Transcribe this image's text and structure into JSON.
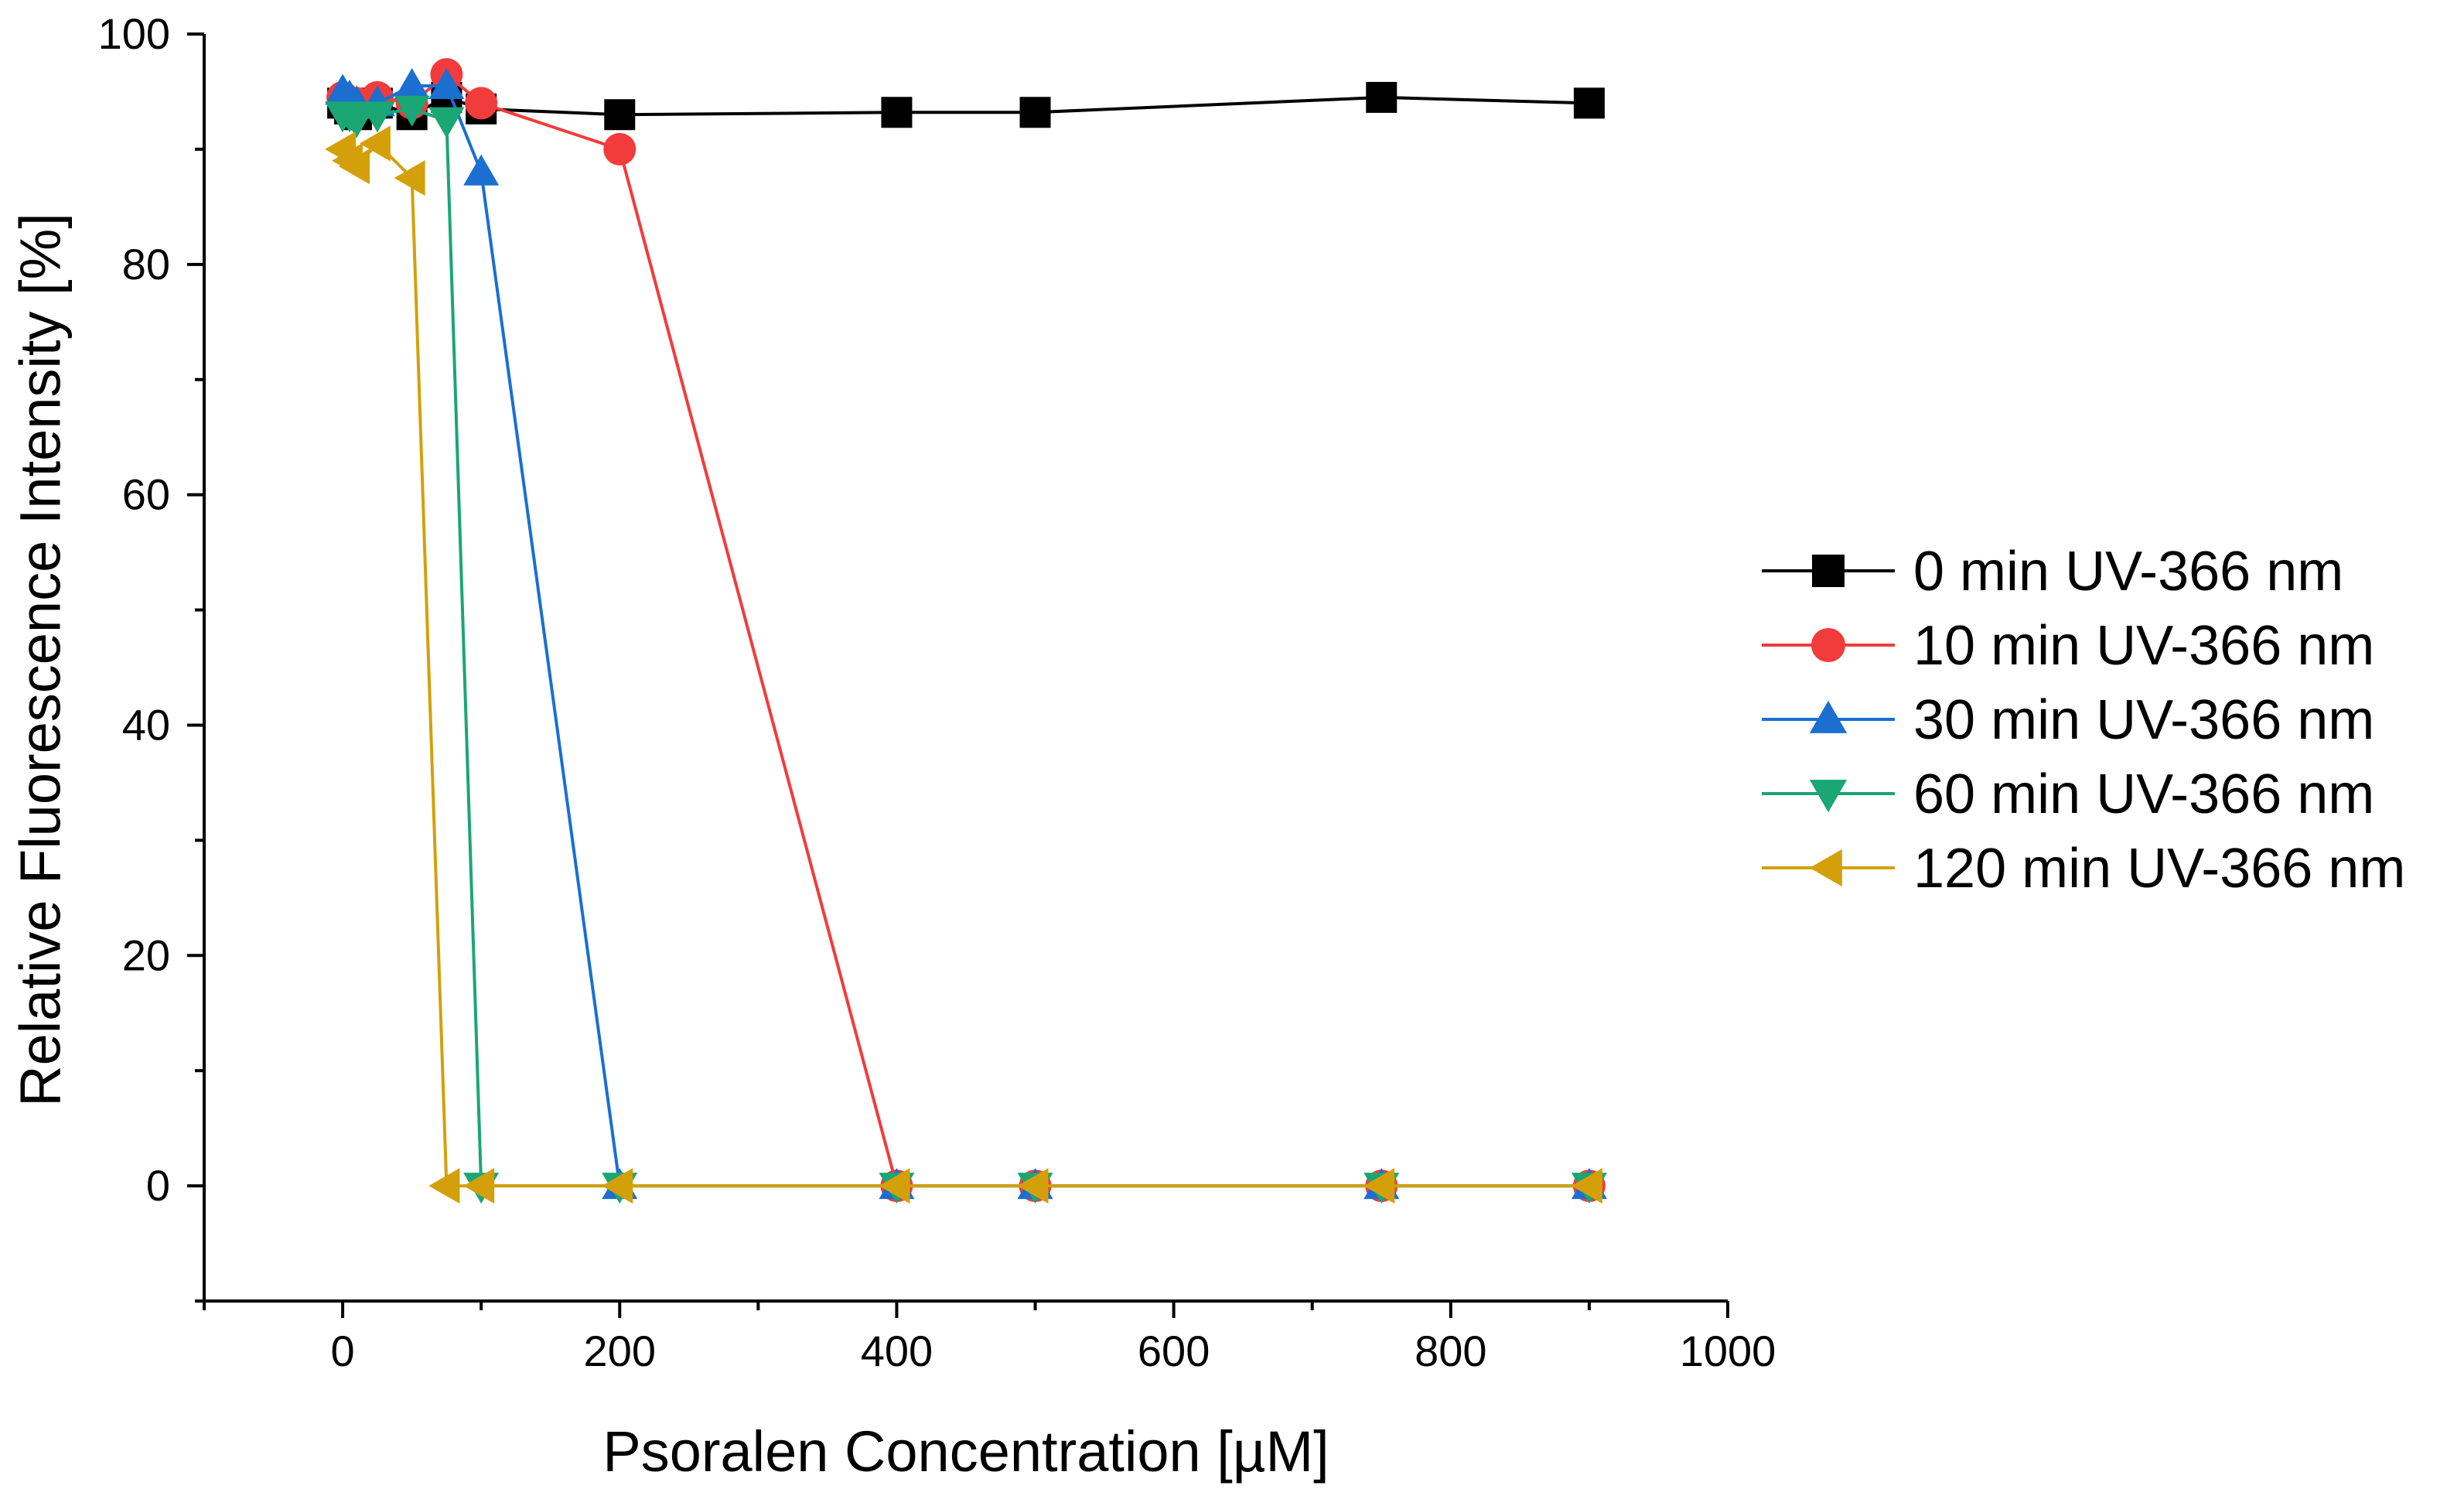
{
  "chart_data": {
    "type": "line",
    "title": "",
    "xlabel": "Psoralen Concentration [µM]",
    "ylabel": "Relative Fluorescence Intensity [%]",
    "xlim": [
      -100,
      1000
    ],
    "ylim": [
      -10,
      100
    ],
    "x_ticks": [
      0,
      200,
      400,
      600,
      800,
      1000
    ],
    "y_ticks": [
      0,
      20,
      40,
      60,
      80,
      100
    ],
    "x_tick_labels": [
      "0",
      "200",
      "400",
      "600",
      "800",
      "1000"
    ],
    "y_tick_labels": [
      "0",
      "20",
      "40",
      "60",
      "80",
      "100"
    ],
    "legend_position": "right",
    "series": [
      {
        "name": "0 min UV-366 nm",
        "color": "#000000",
        "marker": "square",
        "x": [
          0,
          5,
          10,
          25,
          50,
          75,
          100,
          200,
          400,
          500,
          750,
          900
        ],
        "y": [
          94,
          93.5,
          93,
          94,
          93,
          94.5,
          93.5,
          93,
          93.2,
          93.2,
          94.5,
          94
        ]
      },
      {
        "name": "10 min UV-366 nm",
        "color": "#f23b3b",
        "marker": "circle",
        "x": [
          0,
          5,
          10,
          25,
          50,
          75,
          100,
          200,
          400,
          500,
          750,
          900
        ],
        "y": [
          94.5,
          94,
          94,
          94.5,
          94,
          96.5,
          94,
          90,
          0,
          0,
          0,
          0
        ]
      },
      {
        "name": "30 min UV-366 nm",
        "color": "#1a6fd1",
        "marker": "triangle-up",
        "x": [
          0,
          5,
          10,
          25,
          50,
          75,
          100,
          200,
          400,
          500,
          750,
          900
        ],
        "y": [
          95,
          94.5,
          94,
          94,
          95.5,
          95.5,
          88,
          0,
          0,
          0,
          0,
          0
        ]
      },
      {
        "name": "60 min UV-366 nm",
        "color": "#1aa675",
        "marker": "triangle-down",
        "x": [
          0,
          5,
          10,
          25,
          50,
          75,
          100,
          200,
          400,
          500,
          750,
          900
        ],
        "y": [
          93,
          93,
          92.5,
          93,
          93.5,
          92.5,
          0,
          0,
          0,
          0,
          0,
          0
        ]
      },
      {
        "name": "120 min UV-366 nm",
        "color": "#d4a00a",
        "marker": "triangle-left",
        "x": [
          0,
          5,
          10,
          25,
          50,
          75,
          100,
          200,
          400,
          500,
          750,
          900
        ],
        "y": [
          90,
          89,
          88.5,
          90.5,
          87.5,
          0,
          0,
          0,
          0,
          0,
          0,
          0
        ]
      }
    ]
  }
}
